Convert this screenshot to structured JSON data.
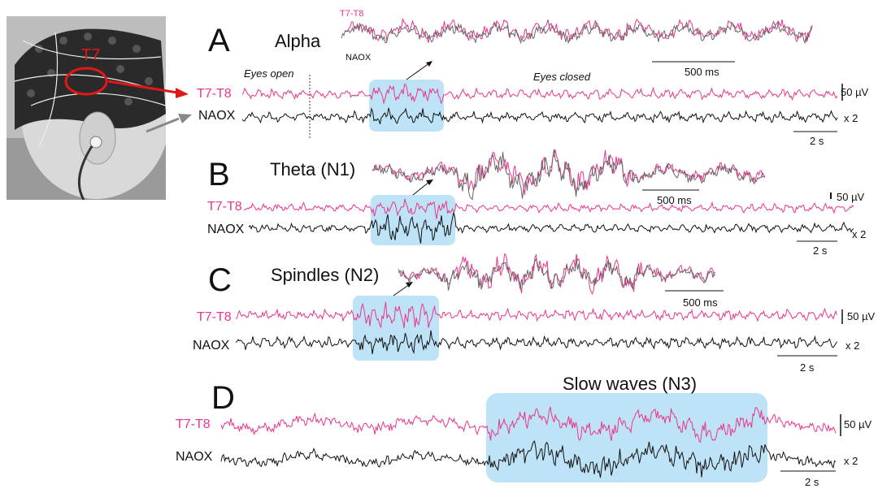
{
  "photo": {
    "electrode_label": "T7",
    "colors": {
      "cap": "#2a2a2a",
      "marker": "#e01818",
      "arrow_gray": "#888888"
    }
  },
  "colors": {
    "pink": "#e8358e",
    "black": "#111111",
    "gray": "#666666",
    "highlight": "#bfe3f6"
  },
  "panels": [
    {
      "letter": "A",
      "title": "Alpha",
      "channel_top": "T7-T8",
      "channel_bottom": "NAOX",
      "inset_top_label": "T7-T8",
      "inset_bottom_label": "NAOX",
      "inset_scale": "500 ms",
      "time_scale": "2 s",
      "amp_scale": "50 µV",
      "gain": "x 2",
      "annotations": [
        "Eyes open",
        "Eyes closed"
      ]
    },
    {
      "letter": "B",
      "title": "Theta (N1)",
      "channel_top": "T7-T8",
      "channel_bottom": "NAOX",
      "inset_scale": "500 ms",
      "time_scale": "2 s",
      "amp_scale": "50 µV",
      "gain": "x 2"
    },
    {
      "letter": "C",
      "title": "Spindles (N2)",
      "channel_top": "T7-T8",
      "channel_bottom": "NAOX",
      "inset_scale": "500 ms",
      "time_scale": "2 s",
      "amp_scale": "50 µV",
      "gain": "x 2"
    },
    {
      "letter": "D",
      "title": "Slow waves (N3)",
      "channel_top": "T7-T8",
      "channel_bottom": "NAOX",
      "time_scale": "2 s",
      "amp_scale": "50 µV",
      "gain": "x 2"
    }
  ]
}
